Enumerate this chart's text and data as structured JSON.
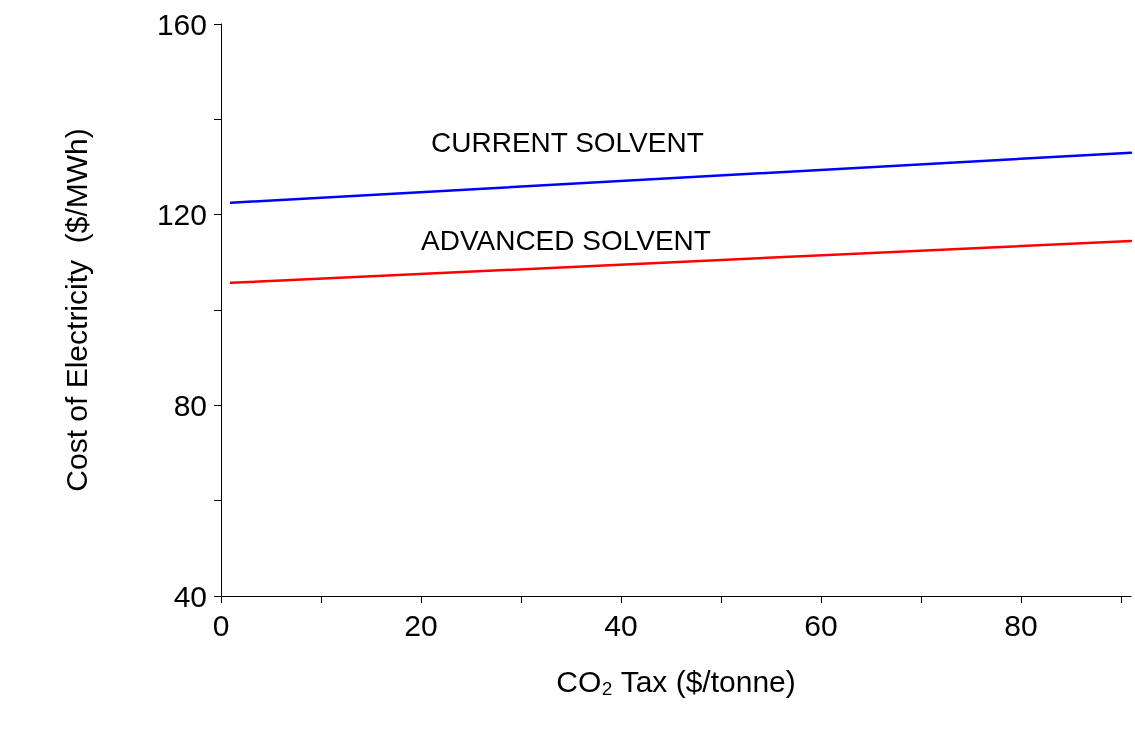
{
  "chart_data": {
    "type": "line",
    "xlabel": "CO₂ Tax ($/tonne)",
    "ylabel": "Cost of Electricity  ($/MWh)",
    "x": [
      1,
      91
    ],
    "series": [
      {
        "name": "CURRENT SOLVENT",
        "color": "#0000ff",
        "values": [
          122.5,
          133
        ]
      },
      {
        "name": "ADVANCED SOLVENT",
        "color": "#ff0000",
        "values": [
          105.7,
          114.5
        ]
      }
    ],
    "xlim": [
      0,
      91
    ],
    "xticks": [
      0,
      {
        "value": 10,
        "label": null
      },
      20,
      {
        "value": 30,
        "label": null
      },
      40,
      {
        "value": 50,
        "label": null
      },
      60,
      {
        "value": 70,
        "label": null
      },
      80,
      {
        "value": 90,
        "label": null
      }
    ],
    "ylim": [
      40,
      160
    ],
    "yticks": [
      40,
      {
        "value": 60,
        "label": null
      },
      80,
      {
        "value": 100,
        "label": null
      },
      120,
      {
        "value": 140,
        "label": null
      },
      160
    ],
    "grid": false,
    "legend": false,
    "marker": "none",
    "line_style": "solid"
  }
}
